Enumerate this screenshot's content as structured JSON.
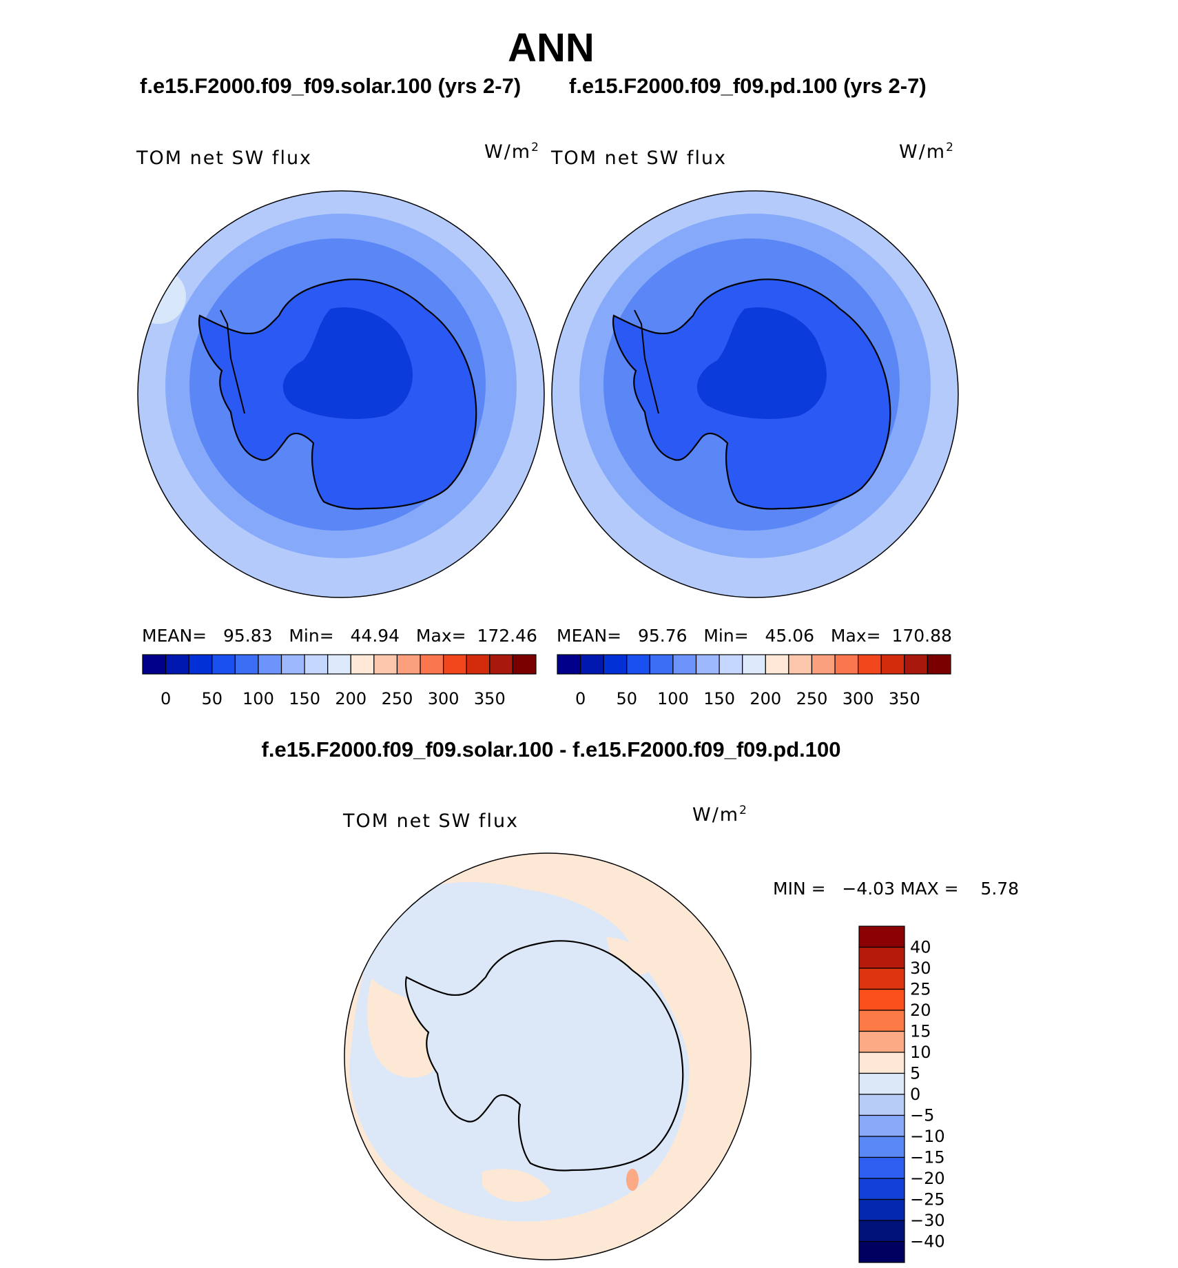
{
  "title": "ANN",
  "panels": [
    {
      "case_title": "f.e15.F2000.f09_f09.solar.100 (yrs 2-7)",
      "variable_label": "TOM net SW flux",
      "units": "W/m",
      "units_exp": "2",
      "stats": "MEAN=   95.83   Min=   44.94   Max=  172.46"
    },
    {
      "case_title": "f.e15.F2000.f09_f09.pd.100 (yrs 2-7)",
      "variable_label": "TOM net SW flux",
      "units": "W/m",
      "units_exp": "2",
      "stats": "MEAN=   95.76   Min=   45.06   Max=  170.88"
    }
  ],
  "diff": {
    "title": "f.e15.F2000.f09_f09.solar.100 - f.e15.F2000.f09_f09.pd.100",
    "variable_label": "TOM net SW flux",
    "units": "W/m",
    "units_exp": "2",
    "stats": "MIN =   −4.03 MAX =    5.78"
  },
  "chart_data": {
    "type": "heatmap",
    "projection": "south polar stereographic",
    "abs_colorbar": {
      "orientation": "horizontal",
      "tick_labels": [
        "0",
        "50",
        "100",
        "150",
        "200",
        "250",
        "300",
        "350"
      ],
      "colors": [
        "#00008b",
        "#0018b0",
        "#0030d6",
        "#1a50f0",
        "#3c6ef5",
        "#6d94fa",
        "#9db8fc",
        "#c6d7fd",
        "#dbe9fb",
        "#ffe9d6",
        "#fcc7ad",
        "#fba07c",
        "#f9764f",
        "#f2471c",
        "#d22c0c",
        "#a8180c",
        "#7a0000"
      ]
    },
    "diff_colorbar": {
      "orientation": "vertical",
      "tick_labels": [
        "40",
        "30",
        "25",
        "20",
        "15",
        "10",
        "5",
        "0",
        "−5",
        "−10",
        "−15",
        "−20",
        "−25",
        "−30",
        "−40"
      ],
      "colors": [
        "#8b0000",
        "#b51a0a",
        "#dc3510",
        "#fb4f1c",
        "#fb7a45",
        "#fcaa85",
        "#fde8d5",
        "#dce8f7",
        "#b7ccf7",
        "#87a9f7",
        "#5a88f5",
        "#2f5ff0",
        "#1240d8",
        "#0428b0",
        "#00127a",
        "#000060"
      ]
    },
    "abs_field_levels_wm2": {
      "outer_ocean": 150,
      "middle_ocean": 125,
      "inner_ocean": 100,
      "antarctica": 75,
      "east_antarctic_plateau": 50
    },
    "diff_field_levels_wm2": {
      "antarctica": -5,
      "ocean_mixed": [
        0,
        5,
        -5
      ]
    }
  }
}
